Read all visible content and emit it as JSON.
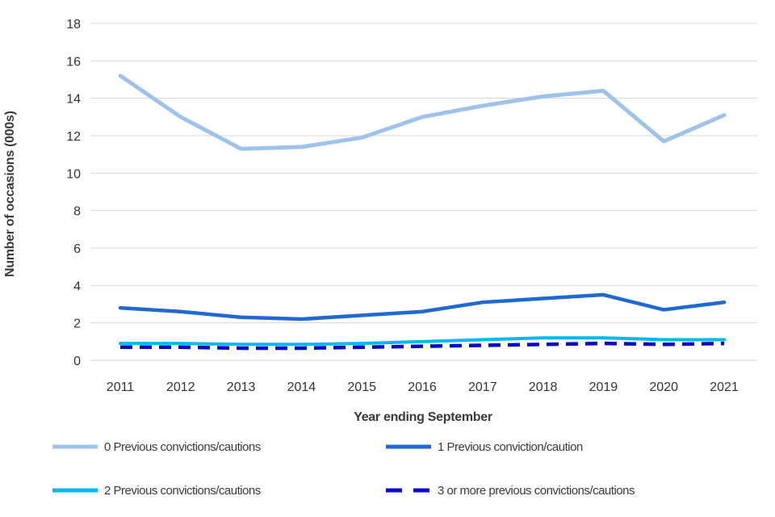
{
  "chart_data": {
    "type": "line",
    "title": "",
    "xlabel": "Year ending September",
    "ylabel": "Number of occasions (000s)",
    "x": [
      2011,
      2012,
      2013,
      2014,
      2015,
      2016,
      2017,
      2018,
      2019,
      2020,
      2021
    ],
    "ylim": [
      0,
      18
    ],
    "ytick_step": 2,
    "grid": "horizontal-only",
    "legend_position": "bottom-two-columns",
    "series": [
      {
        "name": "0 Previous convictions/cautions",
        "color": "#9dc3ea",
        "style": "solid",
        "width": 5,
        "values": [
          15.2,
          13.0,
          11.3,
          11.4,
          11.9,
          13.0,
          13.6,
          14.1,
          14.4,
          11.7,
          13.1
        ]
      },
      {
        "name": "1 Previous conviction/caution",
        "color": "#1f69d2",
        "style": "solid",
        "width": 4.5,
        "values": [
          2.8,
          2.6,
          2.3,
          2.2,
          2.4,
          2.6,
          3.1,
          3.3,
          3.5,
          2.7,
          3.1
        ]
      },
      {
        "name": "2 Previous convictions/cautions",
        "color": "#00b9f2",
        "style": "solid",
        "width": 4,
        "values": [
          0.9,
          0.9,
          0.85,
          0.85,
          0.9,
          1.0,
          1.1,
          1.2,
          1.2,
          1.1,
          1.1
        ]
      },
      {
        "name": "3 or more previous convictions/cautions",
        "color": "#0a0acd",
        "style": "dashed",
        "width": 4.5,
        "values": [
          0.7,
          0.7,
          0.65,
          0.65,
          0.7,
          0.75,
          0.8,
          0.85,
          0.9,
          0.85,
          0.9
        ]
      }
    ]
  },
  "style": {
    "grid_color": "#d6d6d6",
    "tick_label_color": "#333333",
    "dash_pattern": "15 9",
    "legend_dash_pattern": "20 14"
  }
}
